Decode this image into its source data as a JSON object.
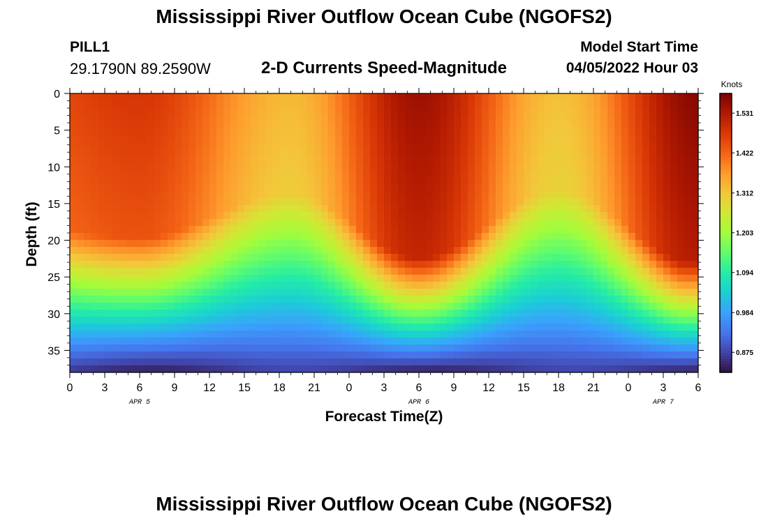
{
  "header": {
    "title": "Mississippi River Outflow Ocean Cube (NGOFS2)",
    "station_id": "PILL1",
    "coordinates": "29.1790N  89.2590W",
    "subtitle": "2-D Currents Speed-Magnitude",
    "model_start_label": "Model Start Time",
    "model_start_value": "04/05/2022 Hour 03"
  },
  "footer": {
    "title": "Mississippi River Outflow Ocean Cube (NGOFS2)"
  },
  "chart_data": {
    "type": "heatmap",
    "title": "2-D Currents Speed-Magnitude",
    "xlabel": "Forecast Time(Z)",
    "ylabel": "Depth (ft)",
    "x_tick_labels": [
      "0",
      "3",
      "6",
      "9",
      "12",
      "15",
      "18",
      "21",
      "0",
      "3",
      "6",
      "9",
      "12",
      "15",
      "18",
      "21",
      "0",
      "3",
      "6"
    ],
    "x_range_hours": [
      0,
      54
    ],
    "date_labels": [
      {
        "label": "APR 5",
        "hour": 6
      },
      {
        "label": "APR 6",
        "hour": 30
      },
      {
        "label": "APR 7",
        "hour": 51
      }
    ],
    "y_ticks": [
      0,
      5,
      10,
      15,
      20,
      25,
      30,
      35
    ],
    "y_range": [
      0,
      38
    ],
    "y_inverted": true,
    "colorbar": {
      "label": "Knots",
      "ticks": [
        "1.531",
        "1.422",
        "1.312",
        "1.203",
        "1.094",
        "0.984",
        "0.875"
      ],
      "range": [
        0.82,
        1.585
      ],
      "colors": [
        "#30123b",
        "#4145ab",
        "#4675ed",
        "#39a2fc",
        "#1bcfd4",
        "#24eca6",
        "#61fc6c",
        "#a4fc3b",
        "#d1e834",
        "#f3c63a",
        "#fe9b2d",
        "#f36315",
        "#d93806",
        "#b11901",
        "#7a0402"
      ]
    },
    "surface_speed_peaks": [
      {
        "hour": 6,
        "speed": 1.48
      },
      {
        "hour": 30,
        "speed": 1.55
      },
      {
        "hour": 54,
        "speed": 1.57
      }
    ],
    "surface_speed_troughs": [
      {
        "hour": 19,
        "speed": 1.33
      },
      {
        "hour": 42,
        "speed": 1.32
      }
    ],
    "bottom_speed_range": [
      0.83,
      0.87
    ]
  }
}
